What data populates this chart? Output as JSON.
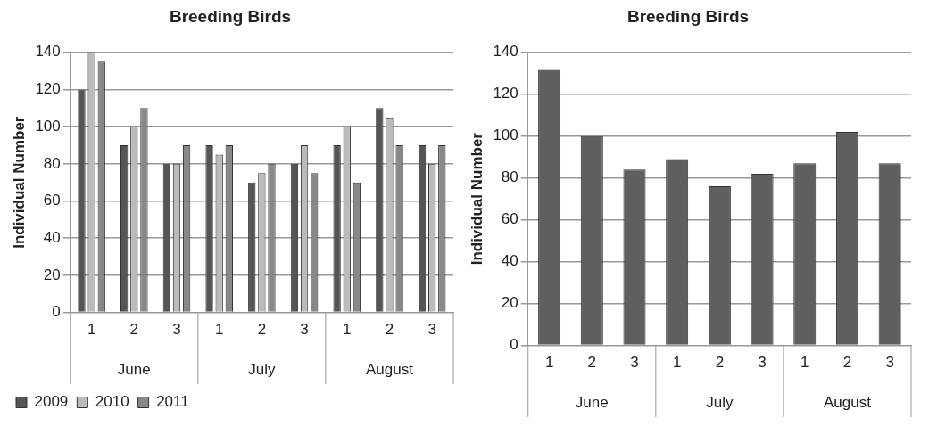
{
  "chart_data": [
    {
      "type": "bar",
      "title": "Breeding Birds",
      "ylabel": "Individual Number",
      "categories": [
        "1",
        "2",
        "3",
        "1",
        "2",
        "3",
        "1",
        "2",
        "3"
      ],
      "annotations": [
        "June",
        "July",
        "August"
      ],
      "series": [
        {
          "name": "2009",
          "color": "#555555",
          "values": [
            120,
            90,
            80,
            90,
            70,
            80,
            90,
            110,
            90
          ]
        },
        {
          "name": "2010",
          "color": "#bbbbbb",
          "values": [
            140,
            100,
            80,
            85,
            75,
            90,
            100,
            105,
            80
          ]
        },
        {
          "name": "2011",
          "color": "#888888",
          "values": [
            135,
            110,
            90,
            90,
            80,
            75,
            70,
            90,
            90
          ]
        }
      ],
      "ylim": [
        0,
        140
      ],
      "yticks": [
        0,
        20,
        40,
        60,
        80,
        100,
        120,
        140
      ],
      "grid": "y",
      "legend": "bottom left"
    },
    {
      "type": "bar",
      "title": "Breeding Birds",
      "ylabel": "Individual Number",
      "categories": [
        "1",
        "2",
        "3",
        "1",
        "2",
        "3",
        "1",
        "2",
        "3"
      ],
      "annotations": [
        "June",
        "July",
        "August"
      ],
      "series": [
        {
          "color": "#5f5f5f",
          "values": [
            132,
            100,
            84,
            89,
            76,
            82,
            87,
            102,
            87
          ]
        }
      ],
      "ylim": [
        0,
        140
      ],
      "yticks": [
        0,
        20,
        40,
        60,
        80,
        100,
        120,
        140
      ],
      "grid": "y"
    }
  ]
}
